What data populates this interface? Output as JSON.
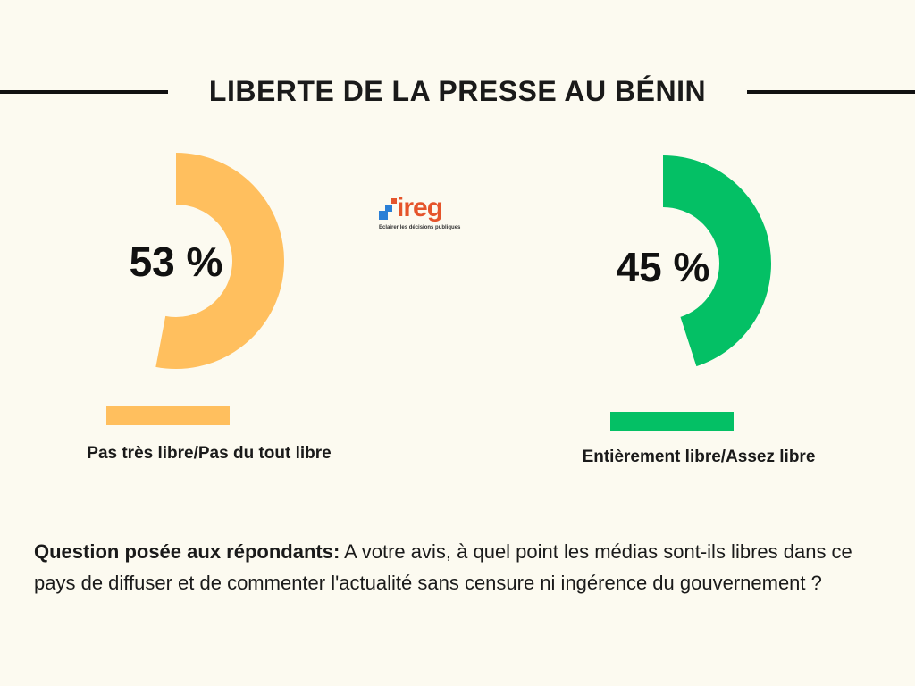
{
  "title": "LIBERTE DE LA PRESSE AU BÉNIN",
  "logo": {
    "name": "ireg",
    "tagline": "Eclairer les décisions publiques"
  },
  "chart_data": {
    "type": "pie",
    "categories": [
      "Pas très libre/Pas du tout libre",
      "Entièrement libre/Assez libre"
    ],
    "values": [
      53,
      45
    ],
    "value_labels": [
      "53 %",
      "45 %"
    ],
    "colors": [
      "#ffbf5e",
      "#04c065"
    ]
  },
  "question": {
    "label": "Question posée aux répondants:",
    "text": " A votre avis, à quel point les médias sont-ils libres dans ce pays de diffuser et de commenter l'actualité sans censure ni ingérence du gouvernement ?"
  }
}
